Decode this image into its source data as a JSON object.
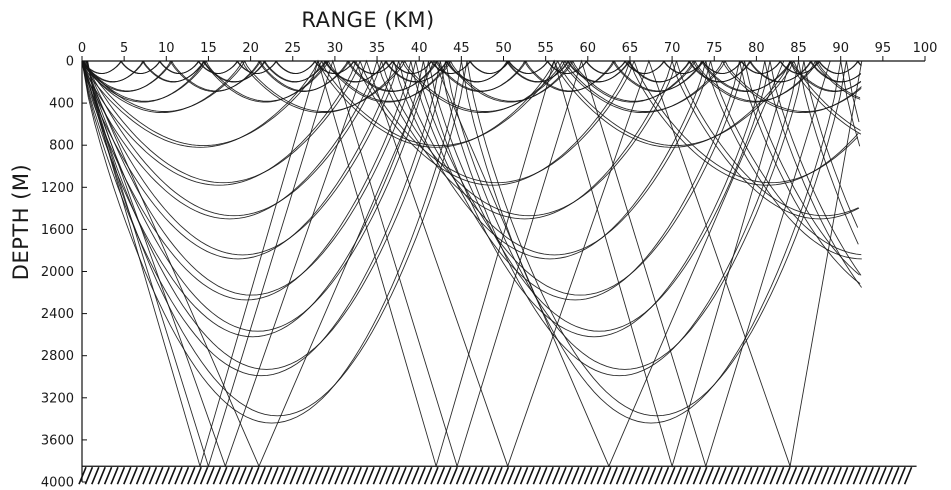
{
  "chart_data": {
    "type": "line",
    "xlabel": "RANGE (KM)",
    "ylabel": "DEPTH (M)",
    "xlim": [
      0,
      100
    ],
    "ylim": [
      0,
      4000
    ],
    "x_ticks": [
      "0",
      "5",
      "10",
      "15",
      "20",
      "25",
      "30",
      "35",
      "40",
      "45",
      "50",
      "55",
      "60",
      "65",
      "70",
      "75",
      "80",
      "85",
      "90",
      "95",
      "100"
    ],
    "y_ticks": [
      "0",
      "400",
      "800",
      "1200",
      "1600",
      "2000",
      "2400",
      "2800",
      "3200",
      "3600",
      "4000"
    ],
    "y_inverted": true,
    "source_position": [
      0,
      0
    ],
    "bottom_depth": 3850,
    "ray_end_range": 92.5,
    "grid": false,
    "rays": [
      {
        "cycle_km": 4.6,
        "turning_depth": 120
      },
      {
        "cycle_km": 7.2,
        "turning_depth": 200
      },
      {
        "cycle_km": 10.5,
        "turning_depth": 290
      },
      {
        "cycle_km": 14.5,
        "turning_depth": 390
      },
      {
        "cycle_km": 19.0,
        "turning_depth": 490
      },
      {
        "cycle_km": 28.0,
        "turning_depth": 820
      },
      {
        "cycle_km": 32.5,
        "turning_depth": 1180
      },
      {
        "cycle_km": 35.0,
        "turning_depth": 1500
      },
      {
        "cycle_km": 37.0,
        "turning_depth": 1880
      },
      {
        "cycle_km": 39.0,
        "turning_depth": 2270
      },
      {
        "cycle_km": 40.5,
        "turning_depth": 2620
      },
      {
        "cycle_km": 42.5,
        "turning_depth": 2990
      },
      {
        "cycle_km": 45.0,
        "turning_depth": 3440
      }
    ],
    "bottom_bounce_rays": [
      {
        "ranges": [
          15.0,
          44.5,
          74.0
        ]
      },
      {
        "ranges": [
          17.0,
          50.5,
          84.0
        ]
      },
      {
        "ranges": [
          21.0,
          62.5
        ]
      },
      {
        "ranges": [
          14.0,
          42.0,
          70.0
        ]
      }
    ]
  }
}
